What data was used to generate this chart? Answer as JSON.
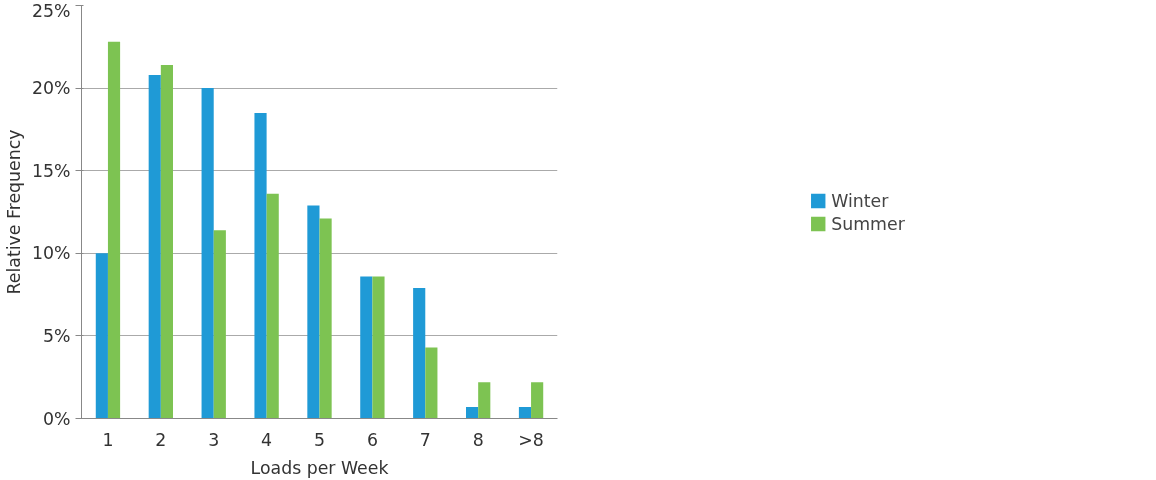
{
  "chart_data": {
    "type": "bar",
    "xlabel": "Loads per Week",
    "ylabel": "Relative Frequency",
    "categories": [
      "1",
      "2",
      "3",
      "4",
      "5",
      "6",
      "7",
      "8",
      ">8"
    ],
    "series": [
      {
        "name": "Winter",
        "color": "#1f9ad6",
        "values": [
          10.0,
          20.8,
          20.0,
          18.5,
          12.9,
          8.6,
          7.9,
          0.7,
          0.7
        ]
      },
      {
        "name": "Summer",
        "color": "#7dc352",
        "values": [
          22.8,
          21.4,
          11.4,
          13.6,
          12.1,
          8.6,
          4.3,
          2.2,
          2.2
        ]
      }
    ],
    "ylim": [
      0,
      25
    ],
    "yticks": [
      {
        "value": 0,
        "label": "0%"
      },
      {
        "value": 5,
        "label": "5%"
      },
      {
        "value": 10,
        "label": "10%"
      },
      {
        "value": 15,
        "label": "15%"
      },
      {
        "value": 20,
        "label": "20%"
      },
      {
        "value": 25,
        "label": "25%"
      }
    ],
    "grid": "y",
    "legend": "right"
  }
}
